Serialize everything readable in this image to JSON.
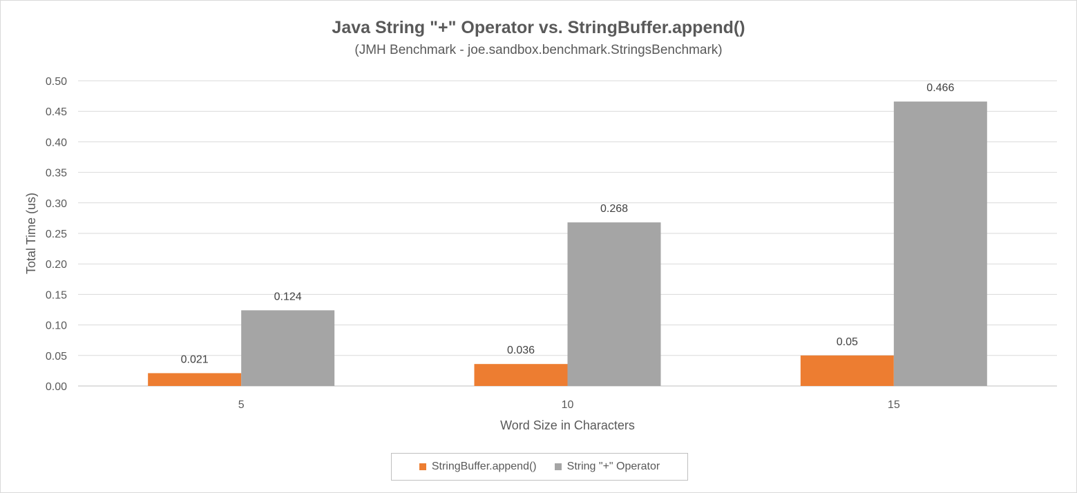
{
  "chart_data": {
    "type": "bar",
    "title": "Java String \"+\" Operator vs. StringBuffer.append()",
    "subtitle": "(JMH Benchmark - joe.sandbox.benchmark.StringsBenchmark)",
    "xlabel": "Word Size in Characters",
    "ylabel": "Total Time (us)",
    "categories": [
      "5",
      "10",
      "15"
    ],
    "ylim": [
      0,
      0.5
    ],
    "yticks": [
      "0.00",
      "0.05",
      "0.10",
      "0.15",
      "0.20",
      "0.25",
      "0.30",
      "0.35",
      "0.40",
      "0.45",
      "0.50"
    ],
    "ytick_values": [
      0,
      0.05,
      0.1,
      0.15,
      0.2,
      0.25,
      0.3,
      0.35,
      0.4,
      0.45,
      0.5
    ],
    "grid": true,
    "legend_position": "bottom",
    "series": [
      {
        "name": "StringBuffer.append()",
        "color": "#ed7d31",
        "values": [
          0.021,
          0.036,
          0.05
        ],
        "labels": [
          "0.021",
          "0.036",
          "0.05"
        ]
      },
      {
        "name": "String \"+\" Operator",
        "color": "#a5a5a5",
        "values": [
          0.124,
          0.268,
          0.466
        ],
        "labels": [
          "0.124",
          "0.268",
          "0.466"
        ]
      }
    ]
  }
}
